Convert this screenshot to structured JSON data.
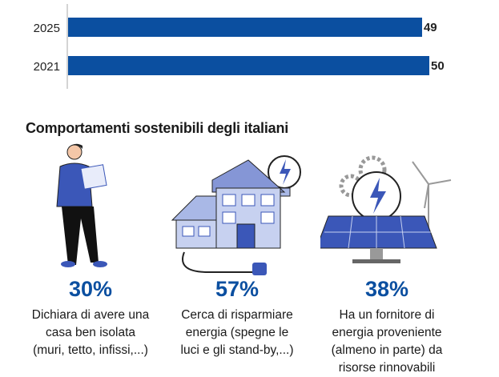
{
  "chart_data": {
    "type": "bar",
    "orientation": "horizontal",
    "categories": [
      "2025",
      "2021"
    ],
    "values": [
      49,
      50
    ],
    "data_labels": [
      "49",
      "50"
    ],
    "xlim": [
      0,
      50
    ],
    "grid": false,
    "bar_color": "#0b4fa0"
  },
  "section": {
    "title": "Comportamenti sostenibili degli italiani",
    "items": [
      {
        "icon": "person-with-house-plan-icon",
        "value": "30%",
        "lines": [
          "Dichiara di avere una",
          "casa ben isolata",
          "(muri, tetto, infissi,...)"
        ]
      },
      {
        "icon": "house-with-solar-panels-and-lightbulb-icon",
        "value": "57%",
        "lines": [
          "Cerca di risparmiare",
          "energia (spegne le",
          "luci e gli stand-by,...)"
        ]
      },
      {
        "icon": "solar-panel-lightbulb-wind-turbine-icon",
        "value": "38%",
        "lines": [
          "Ha un fornitore di",
          "energia proveniente",
          "(almeno in parte) da",
          "risorse rinnovabili"
        ]
      }
    ]
  },
  "colors": {
    "accent": "#0b4fa0",
    "illustration_light": "#a9b8e6",
    "illustration_dark": "#3b57b8"
  }
}
